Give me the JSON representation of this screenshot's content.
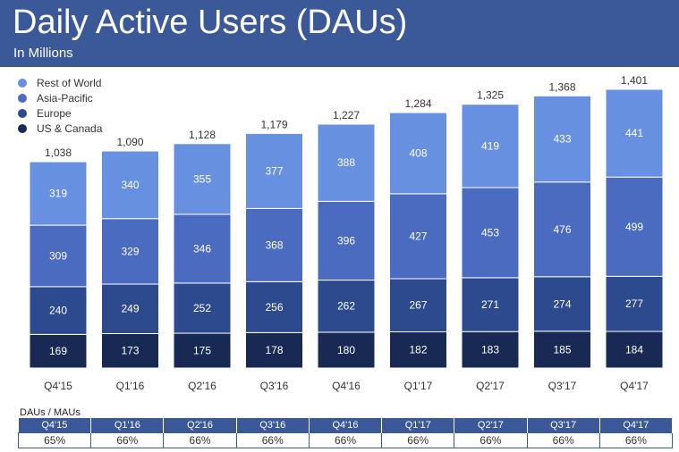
{
  "header": {
    "title": "Daily Active Users (DAUs)",
    "subtitle": "In Millions"
  },
  "colors": {
    "header_bg": "#3b5998",
    "rest_of_world": "#6890e0",
    "asia_pacific": "#4a6bbf",
    "europe": "#2e4a8e",
    "us_canada": "#182a54"
  },
  "chart_data": {
    "type": "bar",
    "stacked": true,
    "categories": [
      "Q4'15",
      "Q1'16",
      "Q2'16",
      "Q3'16",
      "Q4'16",
      "Q1'17",
      "Q2'17",
      "Q3'17",
      "Q4'17"
    ],
    "series": [
      {
        "name": "US & Canada",
        "color": "#182a54",
        "values": [
          169,
          173,
          175,
          178,
          180,
          182,
          183,
          185,
          184
        ]
      },
      {
        "name": "Europe",
        "color": "#2e4a8e",
        "values": [
          240,
          249,
          252,
          256,
          262,
          267,
          271,
          274,
          277
        ]
      },
      {
        "name": "Asia-Pacific",
        "color": "#4a6bbf",
        "values": [
          309,
          329,
          346,
          368,
          396,
          427,
          453,
          476,
          499
        ]
      },
      {
        "name": "Rest of World",
        "color": "#6890e0",
        "values": [
          319,
          340,
          355,
          377,
          388,
          408,
          419,
          433,
          441
        ]
      }
    ],
    "totals": [
      "1,038",
      "1,090",
      "1,128",
      "1,179",
      "1,227",
      "1,284",
      "1,325",
      "1,368",
      "1,401"
    ],
    "legend_order": [
      "Rest of World",
      "Asia-Pacific",
      "Europe",
      "US & Canada"
    ],
    "legend_position": "top-left",
    "grid": false
  },
  "dau_mau": {
    "title": "DAUs / MAUs",
    "quarters": [
      "Q4'15",
      "Q1'16",
      "Q2'16",
      "Q3'16",
      "Q4'16",
      "Q1'17",
      "Q2'17",
      "Q3'17",
      "Q4'17"
    ],
    "values": [
      "65%",
      "66%",
      "66%",
      "66%",
      "66%",
      "66%",
      "66%",
      "66%",
      "66%"
    ]
  }
}
